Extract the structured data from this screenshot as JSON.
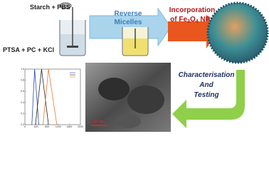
{
  "steps": {
    "reagents_top": "Starch + PBS",
    "reagents_side": "PTSA + PC + KCl",
    "micelles": [
      "Reverse",
      "Micelles"
    ],
    "incorporation": {
      "line1": "Incorporation",
      "line2": [
        "of Fe",
        "3",
        "O",
        "4",
        " NPs"
      ]
    },
    "characterisation": [
      "Characterisation",
      "And",
      "Testing"
    ]
  },
  "tem": {
    "scale_bar": "50 nm"
  },
  "plot": {
    "type": "line",
    "xlim": [
      0,
      2000
    ],
    "xticks": [
      0,
      400,
      800,
      1200,
      1600,
      2000
    ],
    "ylim": [
      0,
      1
    ],
    "yticks": [
      {
        "value": 0,
        "label": "0.0"
      },
      {
        "value": 0.2,
        "label": "0.2"
      },
      {
        "value": 0.4,
        "label": "0.4"
      },
      {
        "value": 0.6,
        "label": "0.6"
      },
      {
        "value": 0.8,
        "label": "0.8"
      },
      {
        "value": 1,
        "label": "1.0"
      }
    ],
    "series": [
      {
        "color": "#2746b8",
        "x": [
          250,
          350,
          500
        ],
        "values": [
          0,
          1,
          0
        ]
      },
      {
        "color": "#222222",
        "x": [
          380,
          600,
          850
        ],
        "values": [
          0,
          1,
          0
        ]
      },
      {
        "color": "#e8792a",
        "x": [
          650,
          850,
          1150
        ],
        "values": [
          0,
          1,
          0
        ]
      }
    ]
  }
}
